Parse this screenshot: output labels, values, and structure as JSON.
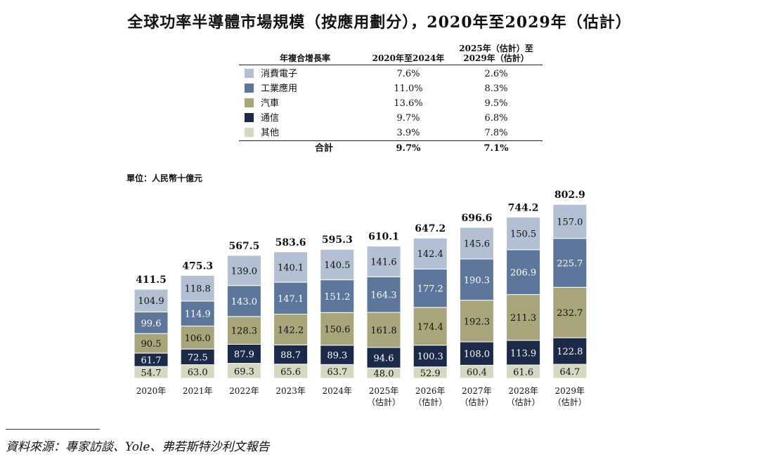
{
  "title": "全球功率半導體市場規模（按應用劃分），2020年至2029年（估計）",
  "cagr_table": {
    "header_label": "年複合增長率",
    "header_col1": "2020年至2024年",
    "header_col2_line1": "2025年（估計）至",
    "header_col2_line2": "2029年（估計）",
    "rows": [
      {
        "label": "消費電子",
        "color": "#b3bfd3",
        "v1": "7.6%",
        "v2": "2.6%"
      },
      {
        "label": "工業應用",
        "color": "#5c769c",
        "v1": "11.0%",
        "v2": "8.3%"
      },
      {
        "label": "汽車",
        "color": "#a9a57b",
        "v1": "13.6%",
        "v2": "9.5%"
      },
      {
        "label": "通信",
        "color": "#1c2a4a",
        "v1": "9.7%",
        "v2": "6.8%"
      },
      {
        "label": "其他",
        "color": "#d6d9c1",
        "v1": "3.9%",
        "v2": "7.8%"
      }
    ],
    "total_label": "合計",
    "total_v1": "9.7%",
    "total_v2": "7.1%"
  },
  "unit_label": "單位：人民幣十億元",
  "source": "資料來源：專家訪談、Yole、弗若斯特沙利文報告",
  "chart_data": {
    "type": "bar",
    "stacked": true,
    "categories": [
      "2020年",
      "2021年",
      "2022年",
      "2023年",
      "2024年",
      "2025年",
      "2026年",
      "2027年",
      "2028年",
      "2029年"
    ],
    "category_sublabels": [
      "",
      "",
      "",
      "",
      "",
      "（估計）",
      "（估計）",
      "（估計）",
      "（估計）",
      "（估計）"
    ],
    "ylabel": "人民幣十億元",
    "ylim": [
      0,
      810
    ],
    "series": [
      {
        "name": "其他",
        "color": "#d6d9c1",
        "text_color": "#111111",
        "values": [
          54.7,
          63.0,
          69.3,
          65.6,
          63.7,
          48.0,
          52.9,
          60.4,
          61.6,
          64.7
        ]
      },
      {
        "name": "通信",
        "color": "#1c2a4a",
        "text_color": "#ffffff",
        "values": [
          61.7,
          72.5,
          87.9,
          88.7,
          89.3,
          94.6,
          100.3,
          108.0,
          113.9,
          122.8
        ]
      },
      {
        "name": "汽車",
        "color": "#a9a57b",
        "text_color": "#111111",
        "values": [
          90.5,
          106.0,
          128.3,
          142.2,
          150.6,
          161.8,
          174.4,
          192.3,
          211.3,
          232.7
        ]
      },
      {
        "name": "工業應用",
        "color": "#5c769c",
        "text_color": "#ffffff",
        "values": [
          99.6,
          114.9,
          143.0,
          147.1,
          151.2,
          164.3,
          177.2,
          190.3,
          206.9,
          225.7
        ]
      },
      {
        "name": "消費電子",
        "color": "#b3bfd3",
        "text_color": "#111111",
        "values": [
          104.9,
          118.8,
          139.0,
          140.1,
          140.5,
          141.6,
          142.4,
          145.6,
          150.5,
          157.0
        ]
      }
    ],
    "totals": [
      411.5,
      475.3,
      567.5,
      583.6,
      595.3,
      610.1,
      647.2,
      696.6,
      744.2,
      802.9
    ]
  }
}
